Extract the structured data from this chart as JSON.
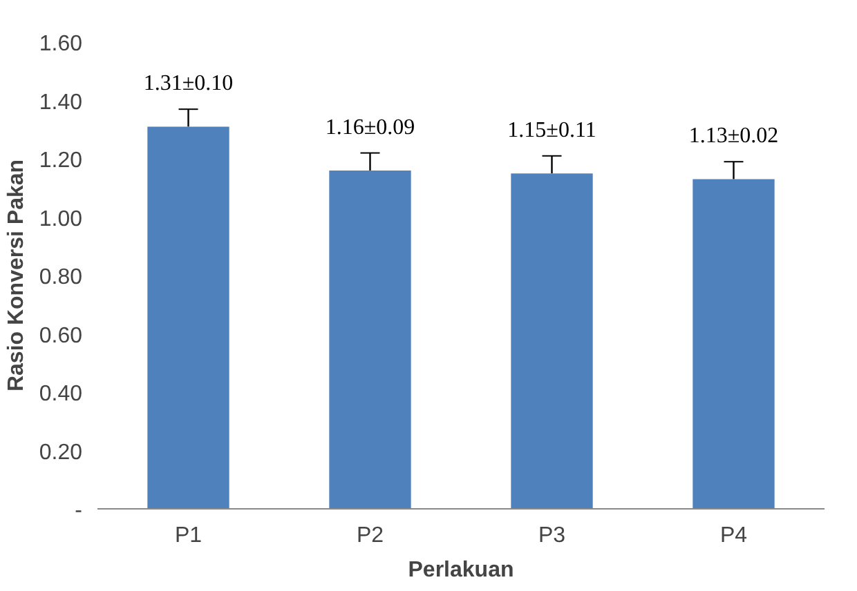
{
  "chart_data": {
    "type": "bar",
    "xlabel": "Perlakuan",
    "ylabel": "Rasio Konversi Pakan",
    "categories": [
      "P1",
      "P2",
      "P3",
      "P4"
    ],
    "values": [
      1.31,
      1.16,
      1.15,
      1.13
    ],
    "errors": [
      [
        1.31,
        1.37
      ],
      [
        1.16,
        1.22
      ],
      [
        1.15,
        1.21
      ],
      [
        1.13,
        1.19
      ]
    ],
    "value_labels": [
      "1.31±0.10",
      "1.16±0.09",
      "1.15±0.11",
      "1.13±0.02"
    ],
    "color": "#4f81bd",
    "ylim": [
      0,
      1.6
    ],
    "yticks": [
      {
        "value": 0,
        "label": "-"
      },
      {
        "value": 0.2,
        "label": "0.20"
      },
      {
        "value": 0.4,
        "label": "0.40"
      },
      {
        "value": 0.6,
        "label": "0.60"
      },
      {
        "value": 0.8,
        "label": "0.80"
      },
      {
        "value": 1.0,
        "label": "1.00"
      },
      {
        "value": 1.2,
        "label": "1.20"
      },
      {
        "value": 1.4,
        "label": "1.40"
      },
      {
        "value": 1.6,
        "label": "1.60"
      }
    ],
    "grid": false
  }
}
